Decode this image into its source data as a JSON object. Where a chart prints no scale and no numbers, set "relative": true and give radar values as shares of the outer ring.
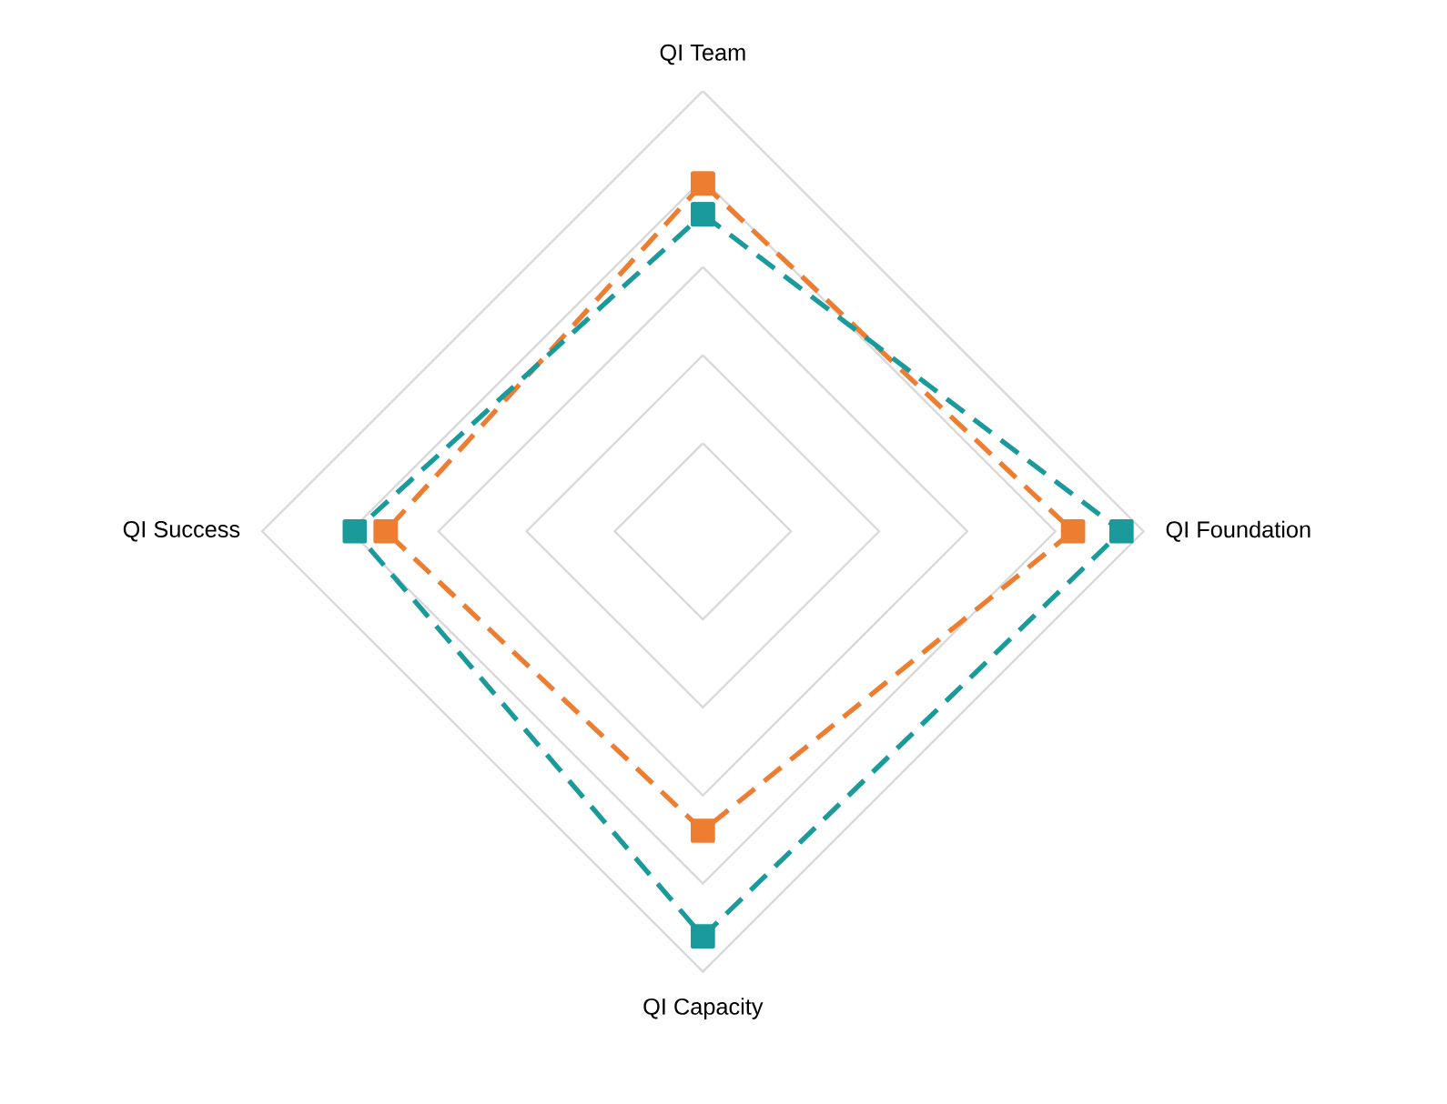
{
  "chart_data": {
    "type": "radar",
    "relative": true,
    "categories": [
      "QI Team",
      "QI Foundation",
      "QI Capacity",
      "QI Success"
    ],
    "series": [
      {
        "color": "#ed7d31",
        "values": [
          0.79,
          0.84,
          0.68,
          0.72
        ]
      },
      {
        "color": "#1a9a9a",
        "values": [
          0.72,
          0.95,
          0.92,
          0.79
        ]
      }
    ],
    "grid": true,
    "marker": "square",
    "line_style": "dashed"
  }
}
